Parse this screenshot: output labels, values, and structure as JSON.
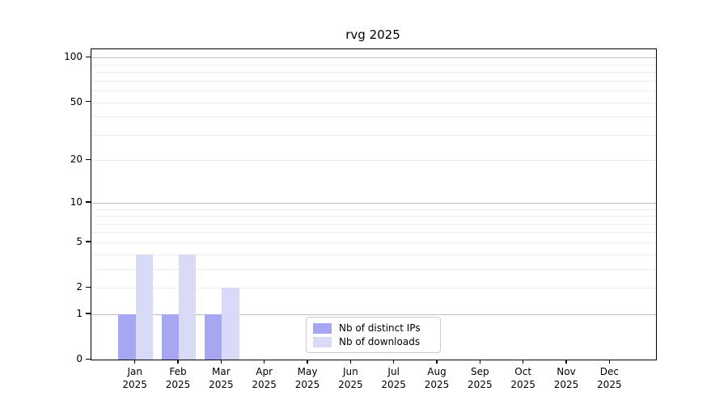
{
  "title": "rvg 2025",
  "chart_data": {
    "type": "bar",
    "title": "rvg 2025",
    "xlabel": "",
    "ylabel": "",
    "scale": "log1p",
    "categories": [
      "Jan",
      "Feb",
      "Mar",
      "Apr",
      "May",
      "Jun",
      "Jul",
      "Aug",
      "Sep",
      "Oct",
      "Nov",
      "Dec"
    ],
    "category_year": "2025",
    "series": [
      {
        "key": "distinct-ips",
        "name": "Nb of distinct IPs",
        "color": "#a6a6f2",
        "values": [
          1,
          1,
          1,
          0,
          0,
          0,
          0,
          0,
          0,
          0,
          0,
          0
        ]
      },
      {
        "key": "downloads",
        "name": "Nb of downloads",
        "color": "#d8daf7",
        "values": [
          4,
          4,
          2,
          0,
          0,
          0,
          0,
          0,
          0,
          0,
          0,
          0
        ]
      }
    ],
    "y_ticks": [
      0,
      1,
      2,
      5,
      10,
      20,
      50,
      100
    ],
    "grid_major": [
      1,
      10,
      100
    ],
    "grid_minor": [
      2,
      3,
      4,
      5,
      6,
      7,
      8,
      9,
      20,
      30,
      40,
      50,
      60,
      70,
      80,
      90
    ],
    "ylim": [
      0,
      113.6
    ],
    "grid": true,
    "legend_position": "lower-center-inside",
    "colors": {
      "grid_major": "#bdbdbd",
      "grid_minor": "#ededed",
      "axis": "#000000",
      "legend_border": "#cccccc"
    }
  }
}
